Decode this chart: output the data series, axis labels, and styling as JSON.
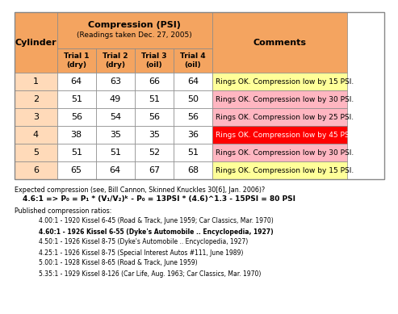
{
  "title_line1": "Compression (PSI)",
  "title_line2": "(Readings taken Dec. 27, 2005)",
  "col_headers": [
    "Cylinder",
    "Trial 1\n(dry)",
    "Trial 2\n(dry)",
    "Trial 3\n(oil)",
    "Trial 4\n(oil)",
    "Comments"
  ],
  "rows": [
    [
      1,
      64,
      63,
      66,
      64,
      "Rings OK. Compression low by 15 PSI."
    ],
    [
      2,
      51,
      49,
      51,
      50,
      "Rings OK. Compression low by 30 PSI."
    ],
    [
      3,
      56,
      54,
      56,
      56,
      "Rings OK. Compression low by 25 PSI."
    ],
    [
      4,
      38,
      35,
      35,
      36,
      "Rings OK. Compression low by 45 PSI!"
    ],
    [
      5,
      51,
      51,
      52,
      51,
      "Rings OK. Compression low by 30 PSI."
    ],
    [
      6,
      65,
      64,
      67,
      68,
      "Rings OK. Compression low by 15 PSI."
    ]
  ],
  "header_bg": "#F4A460",
  "data_bg_orange": "#FFDAB9",
  "comment_colors": [
    "#FFFF99",
    "#FFB6C1",
    "#FFB6C1",
    "#FF0000",
    "#FFB6C1",
    "#FFFF99"
  ],
  "comment_text_colors": [
    "#000000",
    "#000000",
    "#000000",
    "#FFFFFF",
    "#000000",
    "#000000"
  ],
  "bottom_text_line1": "Expected compression (see, Bill Cannon, Skinned Knuckles 30[6], Jan. 2006)?",
  "bottom_text_line2": "4.6:1 => P₀ = P₁ * (V₁/V₂)ᵏ - P₀ = 13PSI * (4.6)^1.3 - 15PSI = 80 PSI",
  "published_ratios": [
    {
      "text": "4.00:1 - 1920 Kissel 6-45 (Road & Track, June 1959; Car Classics, Mar. 1970)",
      "bold": false
    },
    {
      "text": "4.60:1 - 1926 Kissel 6-55 (Dyke's Automobile .. Encyclopedia, 1927)",
      "bold": true
    },
    {
      "text": "4.50:1 - 1926 Kissel 8-75 (Dyke's Automobile .. Encyclopedia, 1927)",
      "bold": false
    },
    {
      "text": "4.25:1 - 1926 Kissel 8-75 (Special Interest Autos #111, June 1989)",
      "bold": false
    },
    {
      "text": "5.00:1 - 1928 Kissel 8-65 (Road & Track, June 1959)",
      "bold": false
    },
    {
      "text": "5.35:1 - 1929 Kissel 8-126 (Car Life, Aug. 1963; Car Classics, Mar. 1970)",
      "bold": false
    }
  ],
  "published_label": "Published compression ratios:",
  "bg_color": "#FFFFFF"
}
